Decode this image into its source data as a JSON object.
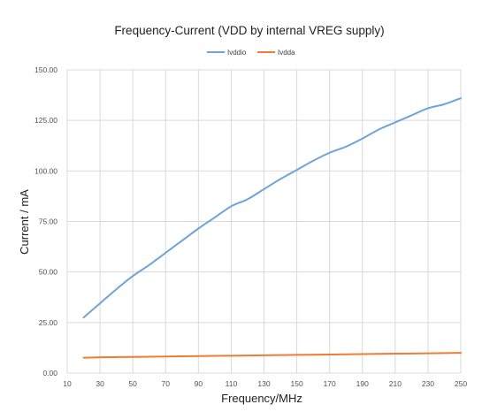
{
  "chart_data": {
    "type": "line",
    "title": "Frequency-Current (VDD by internal VREG supply)",
    "xlabel": "Frequency/MHz",
    "ylabel": "Current / mA",
    "x_ticks": [
      "10",
      "30",
      "50",
      "70",
      "90",
      "110",
      "130",
      "150",
      "170",
      "190",
      "210",
      "230",
      "250"
    ],
    "y_ticks": [
      "0.00",
      "25.00",
      "50.00",
      "75.00",
      "100.00",
      "125.00",
      "150.00"
    ],
    "xlim": [
      10,
      250
    ],
    "ylim": [
      0,
      150
    ],
    "grid": "vertical and horizontal",
    "legend_position": "top",
    "x": [
      20,
      30,
      40,
      50,
      60,
      70,
      80,
      90,
      100,
      110,
      120,
      130,
      140,
      150,
      160,
      170,
      180,
      190,
      200,
      210,
      220,
      230,
      240,
      250
    ],
    "series": [
      {
        "name": "Ivddio",
        "color": "#6fa4d8",
        "values": [
          27.5,
          34.5,
          41.5,
          48,
          53.5,
          59.5,
          65.5,
          71.5,
          77,
          82.5,
          86,
          91,
          96,
          100.5,
          105,
          109,
          112,
          116,
          120.5,
          124,
          127.5,
          131,
          133,
          136
        ]
      },
      {
        "name": "Ivdda",
        "color": "#ed7d31",
        "values": [
          7.6,
          7.8,
          7.9,
          8.0,
          8.1,
          8.2,
          8.3,
          8.4,
          8.5,
          8.6,
          8.7,
          8.8,
          8.9,
          9.0,
          9.1,
          9.2,
          9.3,
          9.4,
          9.5,
          9.6,
          9.7,
          9.8,
          9.9,
          10.0
        ]
      }
    ]
  }
}
